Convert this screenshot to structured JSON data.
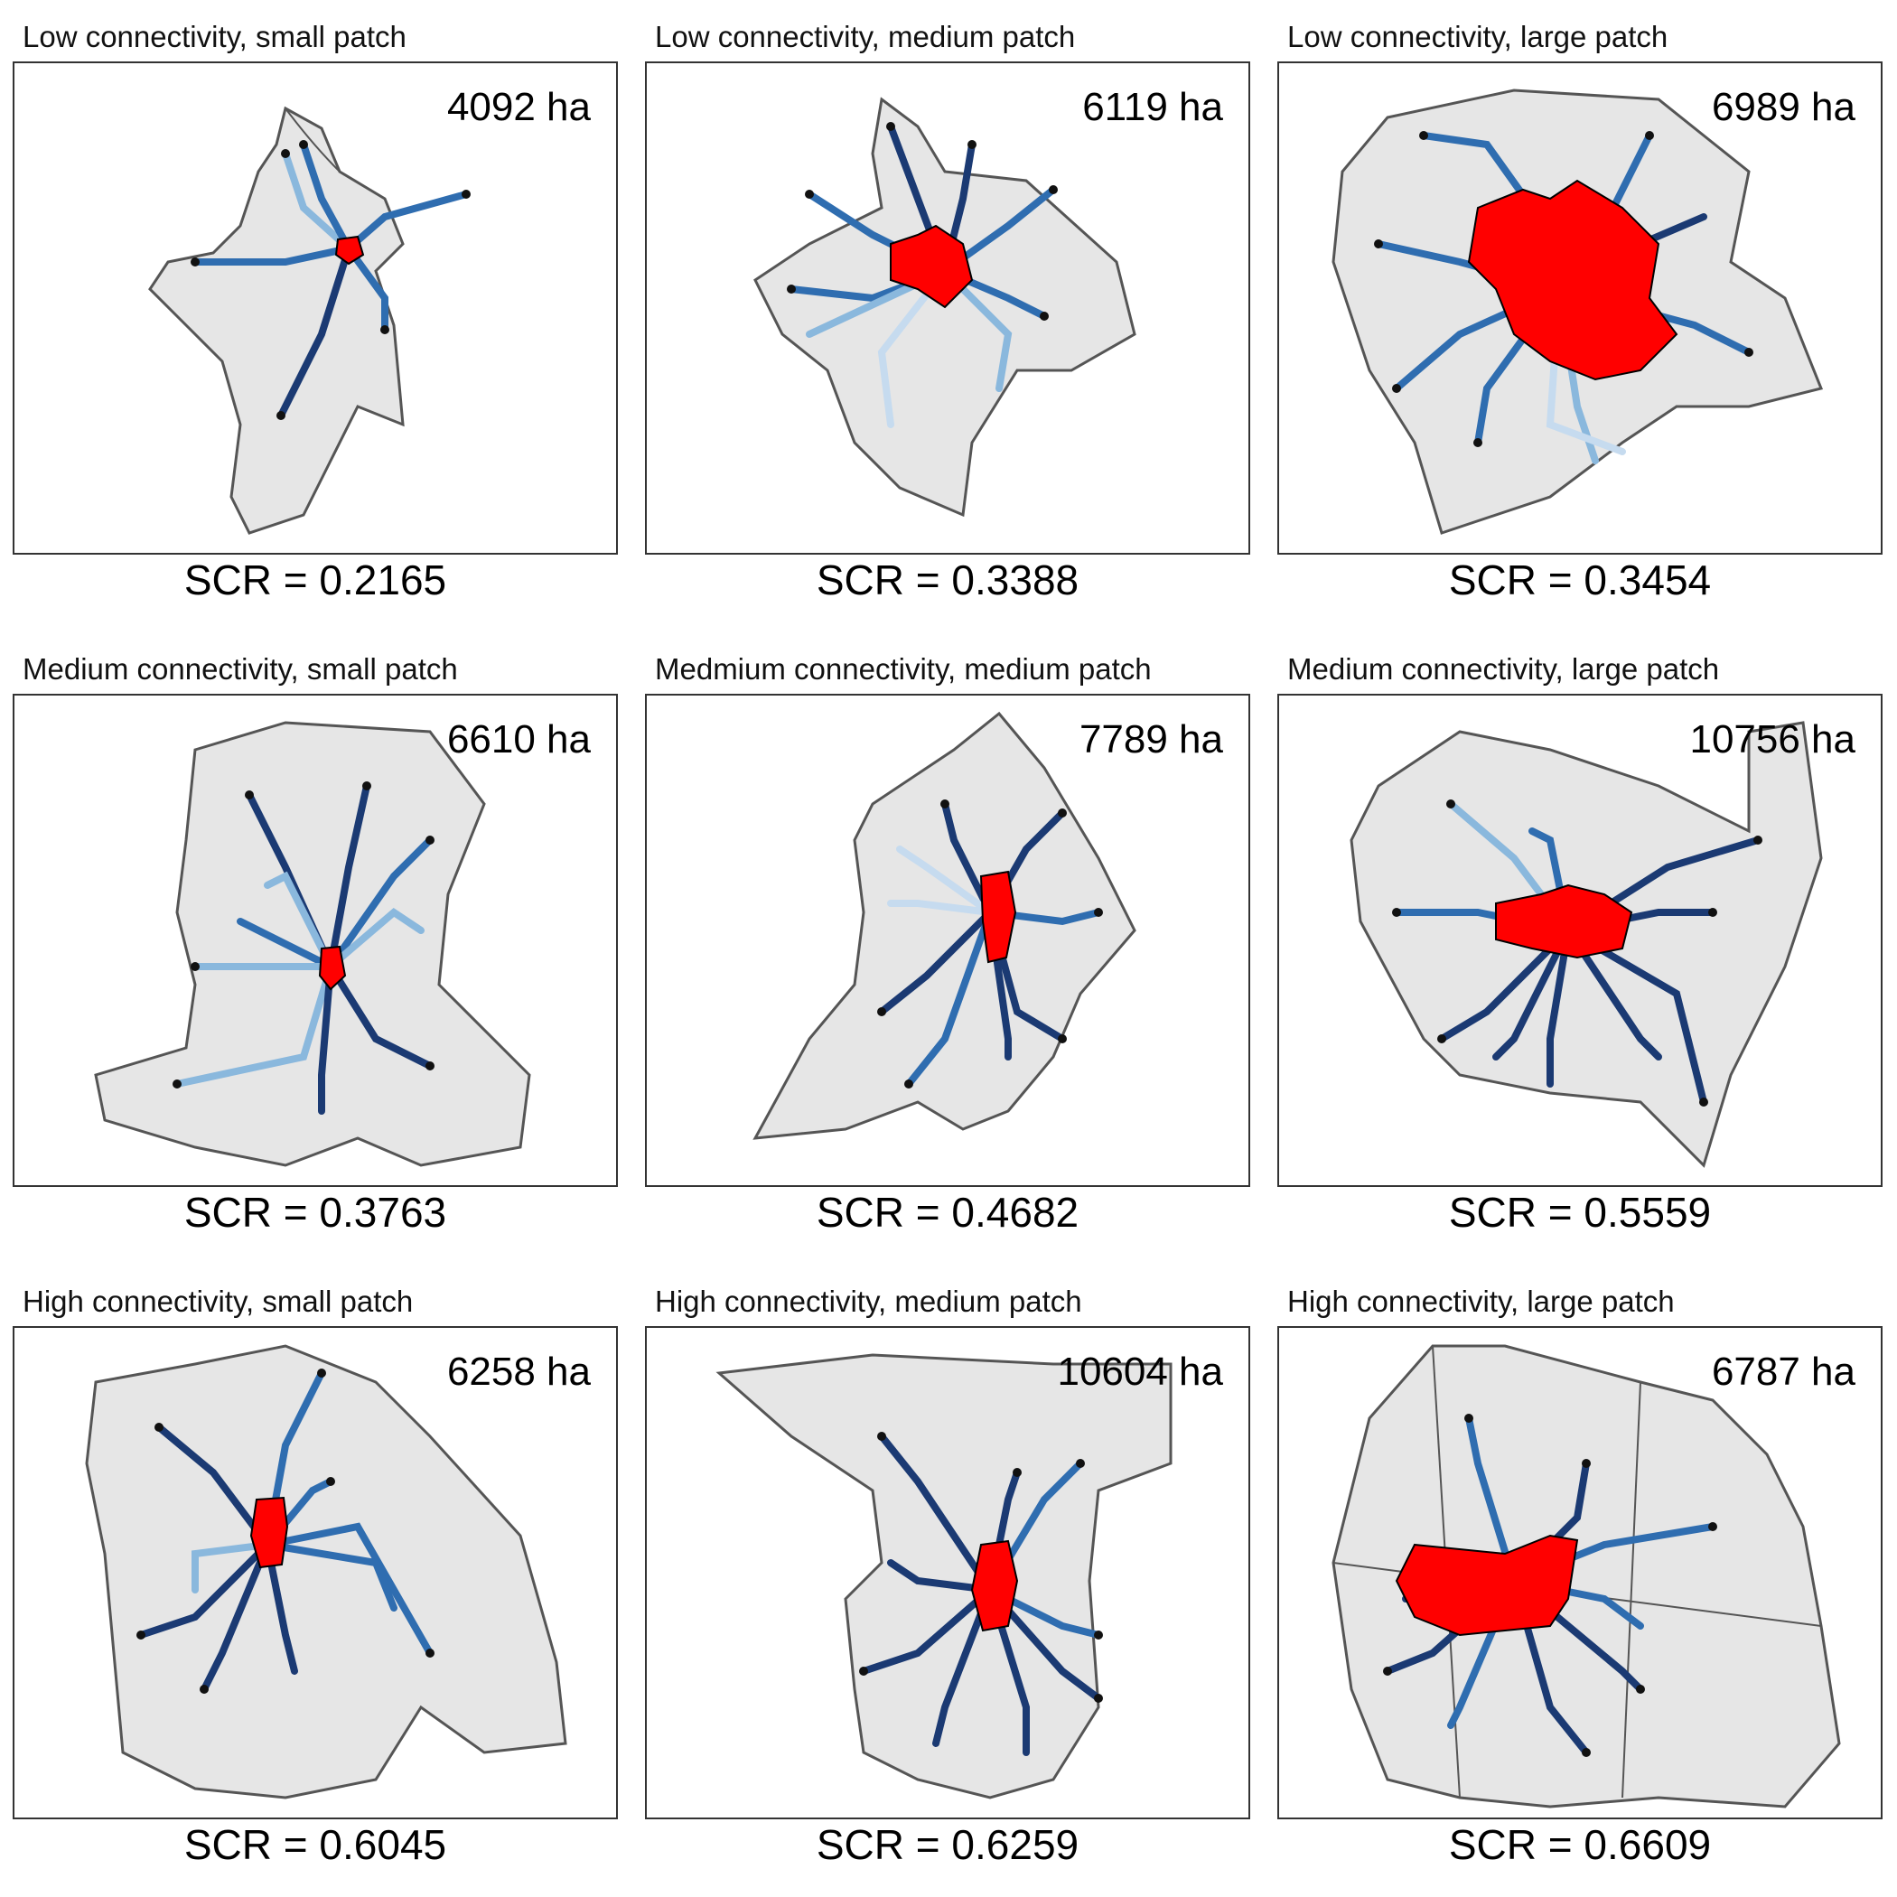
{
  "panels": [
    {
      "title": "Low connectivity, small patch",
      "area": "4092 ha",
      "scr": "SCR = 0.2165"
    },
    {
      "title": "Low connectivity, medium patch",
      "area": "6119 ha",
      "scr": "SCR = 0.3388"
    },
    {
      "title": "Low connectivity, large patch",
      "area": "6989 ha",
      "scr": "SCR = 0.3454"
    },
    {
      "title": "Medium connectivity, small patch",
      "area": "6610 ha",
      "scr": "SCR = 0.3763"
    },
    {
      "title": "Medmium connectivity, medium patch",
      "area": "7789 ha",
      "scr": "SCR = 0.4682"
    },
    {
      "title": "Medium connectivity, large patch",
      "area": "10756 ha",
      "scr": "SCR = 0.5559"
    },
    {
      "title": "High connectivity, small patch",
      "area": "6258 ha",
      "scr": "SCR = 0.6045"
    },
    {
      "title": "High connectivity, medium patch",
      "area": "10604 ha",
      "scr": "SCR = 0.6259"
    },
    {
      "title": "High connectivity, large patch",
      "area": "6787 ha",
      "scr": "SCR = 0.6609"
    }
  ],
  "colors": {
    "landscape_fill": "#e6e6e6",
    "landscape_outline": "#555555",
    "focal_patch": "#ff0000",
    "corridor_dark": "#1b3a73",
    "corridor_mid": "#2f6db0",
    "corridor_light": "#8ab8dd",
    "corridor_lightest": "#c6dbef"
  }
}
